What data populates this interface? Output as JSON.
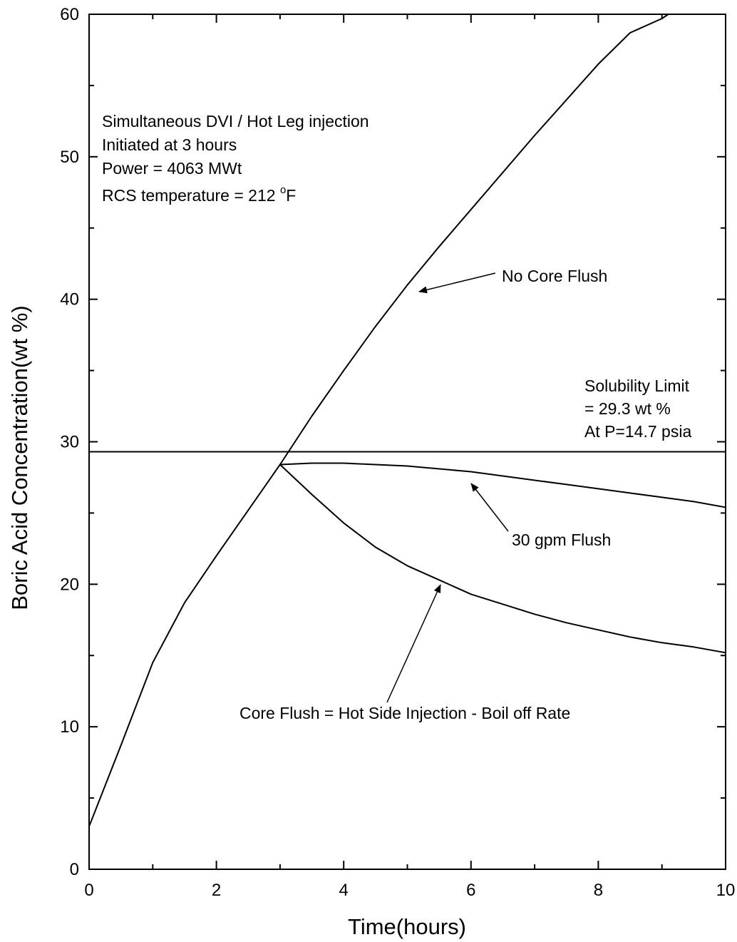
{
  "chart_data": {
    "type": "line",
    "xlabel": "Time(hours)",
    "ylabel": "Boric Acid Concentration(wt %)",
    "xlim": [
      0,
      10
    ],
    "ylim": [
      0,
      60
    ],
    "xticks": [
      0,
      2,
      4,
      6,
      8,
      10
    ],
    "yticks": [
      0,
      10,
      20,
      30,
      40,
      50,
      60
    ],
    "grid": false,
    "legend": "none",
    "series": [
      {
        "name": "No Core Flush",
        "x": [
          0,
          0.5,
          1.0,
          1.5,
          2.0,
          2.5,
          3.0,
          3.5,
          4.0,
          4.5,
          5.0,
          5.5,
          6.0,
          6.5,
          7.0,
          7.5,
          8.0,
          8.5,
          9.0,
          9.1
        ],
        "y": [
          3.0,
          8.7,
          14.5,
          18.7,
          22.0,
          25.2,
          28.4,
          31.8,
          35.0,
          38.1,
          41.0,
          43.7,
          46.3,
          48.9,
          51.5,
          54.0,
          56.5,
          58.7,
          59.7,
          60.0
        ]
      },
      {
        "name": "30 gpm Flush",
        "x": [
          3.0,
          3.5,
          4.0,
          4.5,
          5.0,
          5.5,
          6.0,
          6.5,
          7.0,
          7.5,
          8.0,
          8.5,
          9.0,
          9.5,
          10.0
        ],
        "y": [
          28.4,
          28.5,
          28.5,
          28.4,
          28.3,
          28.1,
          27.9,
          27.6,
          27.3,
          27.0,
          26.7,
          26.4,
          26.1,
          25.8,
          25.4
        ]
      },
      {
        "name": "Core Flush = Hot Side Injection - Boil off Rate",
        "x": [
          3.0,
          3.5,
          4.0,
          4.5,
          5.0,
          5.5,
          6.0,
          6.5,
          7.0,
          7.5,
          8.0,
          8.5,
          9.0,
          9.5,
          10.0
        ],
        "y": [
          28.4,
          26.3,
          24.3,
          22.6,
          21.3,
          20.3,
          19.3,
          18.6,
          17.9,
          17.3,
          16.8,
          16.3,
          15.9,
          15.6,
          15.2
        ]
      },
      {
        "name": "Solubility Limit",
        "x": [
          0,
          10
        ],
        "y": [
          29.3,
          29.3
        ]
      }
    ],
    "annotations": {
      "no_core_flush": "No Core Flush",
      "flush_30gpm": "30 gpm Flush",
      "core_flush": "Core Flush = Hot Side Injection - Boil off Rate",
      "solubility_line1": "Solubility Limit",
      "solubility_line2": "= 29.3 wt %",
      "solubility_line3": "At P=14.7 psia",
      "info_line1": "Simultaneous DVI / Hot Leg injection",
      "info_line2": "Initiated at 3 hours",
      "info_line3": "Power = 4063 MWt",
      "info_line4_prefix": "RCS temperature = 212 ",
      "info_line4_degree": "o",
      "info_line4_unit": "F"
    }
  }
}
